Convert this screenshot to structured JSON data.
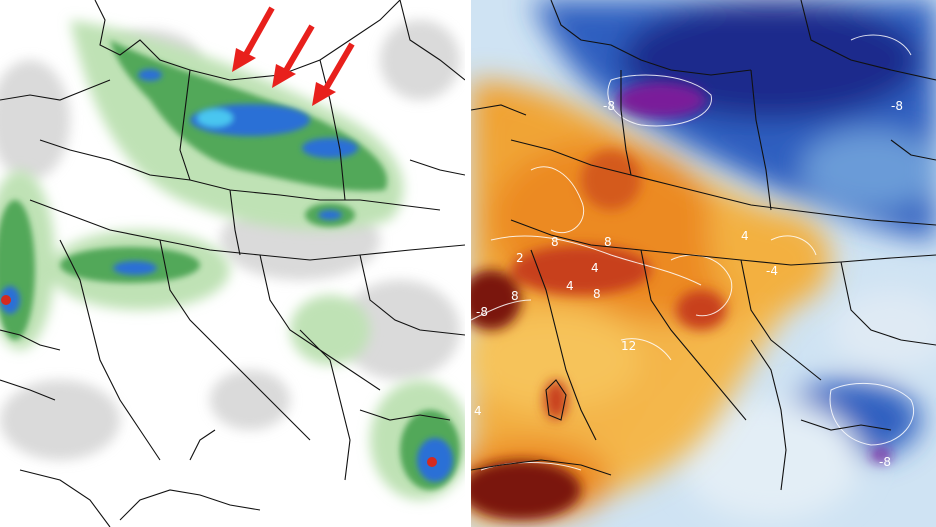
{
  "maps": {
    "left": {
      "kind": "precipitation",
      "arrows": 3
    },
    "right": {
      "kind": "temperature-anomaly",
      "contour_labels": [
        {
          "text": "-8"
        },
        {
          "text": "-8"
        },
        {
          "text": "8"
        },
        {
          "text": "8"
        },
        {
          "text": "4"
        },
        {
          "text": "4"
        },
        {
          "text": "8"
        },
        {
          "text": "2"
        },
        {
          "text": "-8"
        },
        {
          "text": "8"
        },
        {
          "text": "12"
        },
        {
          "text": "4"
        },
        {
          "text": "-4"
        },
        {
          "text": "4"
        },
        {
          "text": "-8"
        }
      ]
    }
  },
  "colors": {
    "arrow": "#e8201c",
    "precip_light": "#c8e6c0",
    "precip_green": "#3aa047",
    "precip_blue": "#2a6fd6",
    "precip_cyan": "#49c6f0",
    "precip_red": "#d42a1f",
    "warm_light": "#f6c35a",
    "warm_orange": "#ec8a22",
    "warm_red": "#c8401a",
    "warm_dark": "#7a1410",
    "cold_light": "#bcd9ef",
    "cold_blue": "#2d5fc0",
    "cold_dark": "#1a2a8c",
    "cold_purple": "#7a1d9a"
  }
}
